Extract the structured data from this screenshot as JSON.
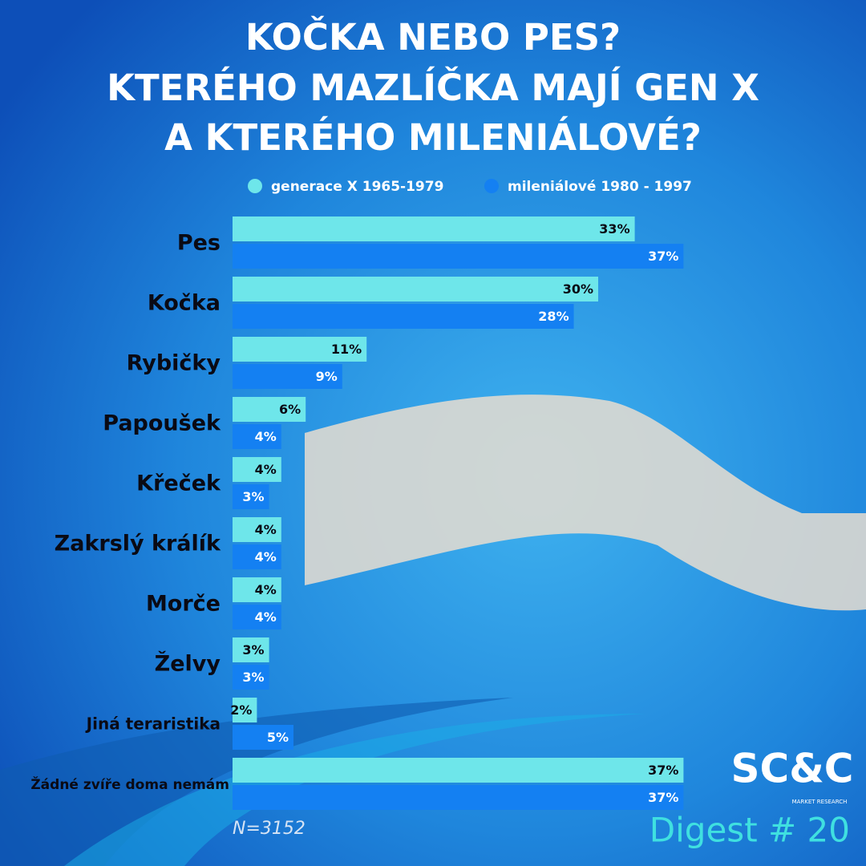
{
  "chart_data": {
    "type": "bar",
    "orientation": "horizontal",
    "title": [
      "KOČKA NEBO PES?",
      "KTERÉHO MAZLÍČKA MAJÍ GEN X",
      "A KTERÉHO MILENIÁLOVÉ?"
    ],
    "categories": [
      "Pes",
      "Kočka",
      "Rybičky",
      "Papoušek",
      "Křeček",
      "Zakrslý králík",
      "Morče",
      "Želvy",
      "Jiná teraristika",
      "Žádné zvíře doma nemám"
    ],
    "series": [
      {
        "name": "generace X 1965-1979",
        "color": "#6ee6ea",
        "values": [
          33,
          30,
          11,
          6,
          4,
          4,
          4,
          3,
          2,
          37
        ],
        "value_labels": [
          "33%",
          "30%",
          "11%",
          "6%",
          "4%",
          "4%",
          "4%",
          "3%",
          "2%",
          "37%"
        ]
      },
      {
        "name": "mileniálové 1980 - 1997",
        "color": "#1480f2",
        "values": [
          37,
          28,
          9,
          4,
          3,
          4,
          4,
          3,
          5,
          37
        ],
        "value_labels": [
          "37%",
          "28%",
          "9%",
          "4%",
          "3%",
          "4%",
          "4%",
          "3%",
          "5%",
          "37%"
        ]
      }
    ],
    "note": "N=3152",
    "logo": "SC&C",
    "logo_subtitle": "MARKET RESEARCH",
    "badge": "Digest # 20"
  }
}
